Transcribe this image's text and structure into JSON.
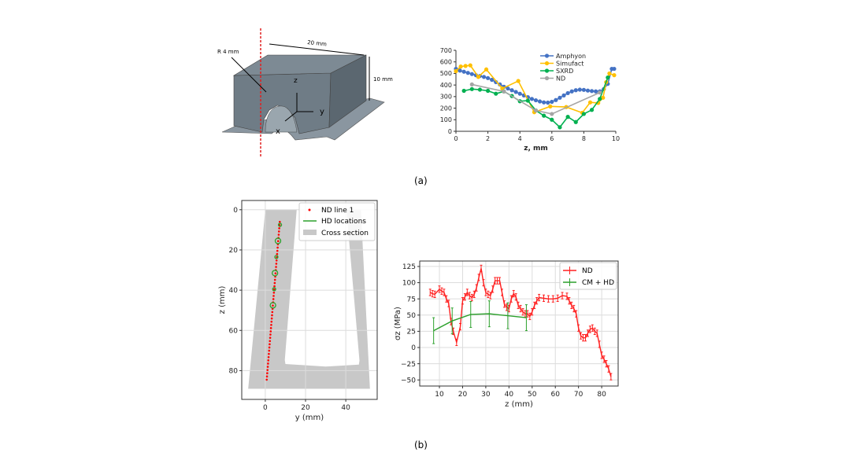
{
  "captions": {
    "a": "(a)",
    "b": "(b)"
  },
  "part_diagram": {
    "dim_length": "20 mm",
    "dim_height": "10 mm",
    "dim_radius": "R 4 mm",
    "axis_z": "z",
    "axis_y": "y",
    "axis_x": "x",
    "colors": {
      "part": "#6f7c86",
      "top": "#7d8a94",
      "section_line": "#e02020"
    }
  },
  "chart_data": [
    {
      "type": "line",
      "title": "",
      "xlabel": "z, mm",
      "ylabel": "",
      "xlim": [
        0,
        10
      ],
      "ylim": [
        0,
        700
      ],
      "xticks": [
        0,
        2,
        4,
        6,
        8,
        10
      ],
      "yticks": [
        0,
        100,
        200,
        300,
        400,
        500,
        600,
        700
      ],
      "grid": false,
      "legend": "top-right",
      "series": [
        {
          "name": "Amphyon",
          "color": "#4472c4",
          "x": [
            0,
            0.25,
            0.5,
            0.75,
            1,
            1.25,
            1.5,
            1.75,
            2,
            2.25,
            2.5,
            2.75,
            3,
            3.25,
            3.5,
            3.75,
            4,
            4.25,
            4.5,
            4.75,
            5,
            5.25,
            5.5,
            5.75,
            6,
            6.25,
            6.5,
            6.75,
            7,
            7.25,
            7.5,
            7.75,
            8,
            8.25,
            8.5,
            8.75,
            9,
            9.25,
            9.5,
            9.75,
            9.9
          ],
          "y": [
            540,
            525,
            515,
            505,
            495,
            485,
            478,
            470,
            460,
            445,
            425,
            405,
            385,
            370,
            355,
            340,
            325,
            310,
            295,
            280,
            268,
            258,
            250,
            248,
            255,
            270,
            290,
            310,
            330,
            345,
            355,
            360,
            358,
            352,
            348,
            345,
            345,
            365,
            410,
            540,
            540
          ]
        },
        {
          "name": "Simufact",
          "color": "#ffc000",
          "x": [
            0,
            0.3,
            0.6,
            0.9,
            1.4,
            1.9,
            2.9,
            3.9,
            4.9,
            5.9,
            6.9,
            7.9,
            8.4,
            8.9,
            9.2,
            9.4,
            9.6,
            9.9
          ],
          "y": [
            520,
            560,
            565,
            570,
            470,
            535,
            370,
            435,
            165,
            215,
            210,
            160,
            250,
            245,
            290,
            425,
            500,
            485
          ]
        },
        {
          "name": "SXRD",
          "color": "#00b050",
          "x": [
            0.5,
            1,
            1.5,
            2,
            2.5,
            3,
            3.5,
            4,
            4.5,
            5,
            5.5,
            6,
            6.5,
            7,
            7.5,
            8,
            8.5,
            9,
            9.5
          ],
          "y": [
            350,
            365,
            360,
            350,
            325,
            345,
            305,
            260,
            265,
            180,
            135,
            100,
            35,
            125,
            80,
            150,
            185,
            280,
            465
          ]
        },
        {
          "name": "ND",
          "color": "#a5a5a5",
          "x": [
            1,
            3,
            5,
            6,
            9
          ],
          "y": [
            405,
            345,
            180,
            150,
            335
          ]
        }
      ]
    },
    {
      "type": "scatter",
      "title": "",
      "xlabel": "y (mm)",
      "ylabel": "z (mm)",
      "xlim": [
        -11.7,
        55.6
      ],
      "ylim": [
        94.3,
        -4.6
      ],
      "xticks": [
        0,
        20,
        40
      ],
      "yticks": [
        0,
        20,
        40,
        60,
        80
      ],
      "grid": true,
      "legend": "top-right",
      "cross_section": {
        "name": "Cross section",
        "color": "#c8c8c8",
        "outline_y": [
          0,
          15.6,
          9.7,
          10,
          30,
          46.5,
          46.8,
          40.3,
          47.5,
          52,
          -8.5
        ],
        "outline_z": [
          0,
          0,
          74.7,
          76.7,
          78,
          77,
          75,
          0,
          0,
          89,
          89
        ]
      },
      "nd_line": {
        "name": "ND line 1",
        "color": "#ff0000",
        "y_start": 7.2,
        "y_end": 0.7,
        "z_start": 6,
        "z_end": 84.5,
        "count": 50
      },
      "hd_locations": {
        "name": "HD locations",
        "color": "#2ca02c",
        "y": [
          7.3,
          6.3,
          5.5,
          4.8,
          4.4,
          3.8
        ],
        "z": [
          7.5,
          15.5,
          23.5,
          31.5,
          39.5,
          47.5
        ]
      }
    },
    {
      "type": "line",
      "title": "",
      "xlabel": "z (mm)",
      "ylabel": "σz (MPa)",
      "xlim": [
        1.5,
        87.1
      ],
      "ylim": [
        -59.4,
        133.4
      ],
      "xticks": [
        10,
        20,
        30,
        40,
        50,
        60,
        70,
        80
      ],
      "yticks": [
        -50,
        -25,
        0,
        25,
        50,
        75,
        100,
        125
      ],
      "grid": true,
      "legend": "top-right",
      "series": [
        {
          "name": "ND",
          "color": "#ff2020",
          "err": 5,
          "x": [
            6,
            7,
            8,
            10,
            11,
            12,
            13,
            14,
            15,
            16,
            17.4,
            19,
            20,
            21,
            22,
            23,
            24,
            25,
            26,
            27,
            28,
            29,
            30,
            31,
            32,
            33,
            34,
            35,
            36,
            37,
            38,
            39,
            40,
            41,
            42,
            43,
            44,
            45,
            46,
            47,
            48,
            49,
            50,
            51,
            52,
            53,
            55,
            57,
            59,
            61,
            63,
            65,
            66,
            67,
            68,
            69,
            70,
            71,
            72,
            73,
            74,
            75,
            76,
            77,
            78,
            79,
            80,
            81,
            82,
            83,
            84
          ],
          "y": [
            85,
            83,
            82,
            90,
            87,
            85,
            75,
            68,
            40,
            25,
            8,
            32,
            72,
            78,
            85,
            80,
            77,
            82,
            92,
            108,
            122,
            100,
            85,
            82,
            80,
            90,
            103,
            103,
            103,
            85,
            67,
            62,
            60,
            75,
            83,
            78,
            65,
            60,
            55,
            52,
            52,
            48,
            55,
            65,
            72,
            77,
            76,
            75,
            75,
            76,
            80,
            79,
            72,
            65,
            60,
            52,
            30,
            18,
            15,
            15,
            22,
            28,
            30,
            25,
            22,
            5,
            -12,
            -18,
            -25,
            -33,
            -45
          ]
        },
        {
          "name": "CM + HD",
          "color": "#2ca02c",
          "err": 20,
          "x": [
            7.5,
            15.5,
            23.5,
            31.5,
            39.5,
            47.5
          ],
          "y": [
            26,
            41,
            51,
            52,
            49,
            46
          ]
        }
      ]
    }
  ]
}
